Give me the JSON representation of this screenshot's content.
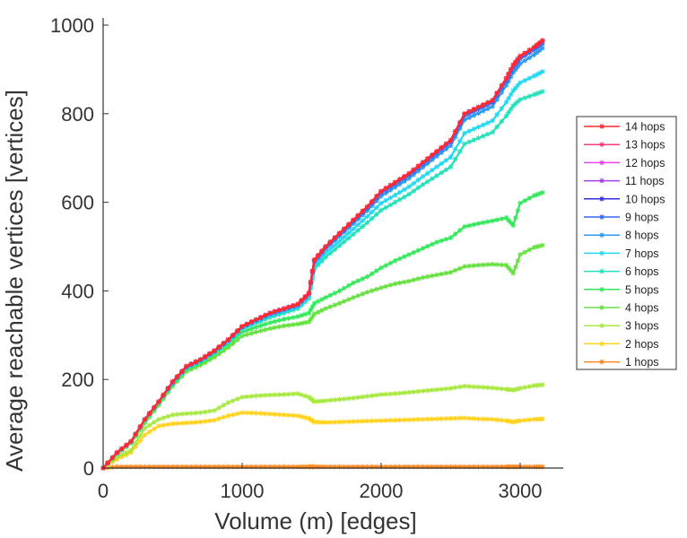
{
  "chart_data": {
    "type": "line",
    "title": "",
    "xlabel": "Volume (m) [edges]",
    "ylabel": "Average reachable vertices [vertices]",
    "xlim": [
      0,
      3300
    ],
    "ylim": [
      0,
      1000
    ],
    "xticks": [
      0,
      1000,
      2000,
      3000
    ],
    "yticks": [
      0,
      200,
      400,
      600,
      800,
      1000
    ],
    "grid": false,
    "legend_position": "right",
    "x": [
      0,
      100,
      200,
      300,
      400,
      500,
      600,
      700,
      800,
      900,
      1000,
      1100,
      1200,
      1300,
      1400,
      1480,
      1520,
      1600,
      1700,
      1800,
      1900,
      2000,
      2100,
      2200,
      2300,
      2400,
      2500,
      2600,
      2700,
      2800,
      2900,
      2950,
      3000,
      3100,
      3160
    ],
    "series": [
      {
        "name": "14 hops",
        "color": "#ff2a2a",
        "values": [
          0,
          35,
          60,
          110,
          150,
          195,
          230,
          245,
          265,
          290,
          320,
          335,
          350,
          360,
          370,
          395,
          470,
          500,
          530,
          560,
          590,
          625,
          645,
          665,
          690,
          715,
          740,
          800,
          815,
          830,
          880,
          910,
          930,
          950,
          965
        ]
      },
      {
        "name": "13 hops",
        "color": "#ff3c7a",
        "values": [
          0,
          35,
          60,
          110,
          150,
          195,
          230,
          245,
          265,
          290,
          320,
          335,
          350,
          360,
          370,
          395,
          470,
          500,
          530,
          560,
          590,
          625,
          645,
          665,
          690,
          715,
          740,
          800,
          815,
          830,
          880,
          910,
          930,
          950,
          965
        ]
      },
      {
        "name": "12 hops",
        "color": "#ee44ee",
        "values": [
          0,
          35,
          60,
          110,
          150,
          195,
          230,
          245,
          265,
          290,
          320,
          335,
          350,
          360,
          370,
          395,
          470,
          500,
          530,
          560,
          590,
          625,
          645,
          665,
          690,
          715,
          740,
          800,
          815,
          830,
          880,
          910,
          930,
          950,
          965
        ]
      },
      {
        "name": "11 hops",
        "color": "#a040f0",
        "values": [
          0,
          35,
          60,
          110,
          150,
          195,
          230,
          245,
          265,
          290,
          320,
          335,
          350,
          360,
          370,
          395,
          470,
          500,
          530,
          560,
          590,
          625,
          645,
          665,
          690,
          715,
          740,
          800,
          815,
          830,
          880,
          910,
          930,
          950,
          965
        ]
      },
      {
        "name": "10 hops",
        "color": "#3030e0",
        "values": [
          0,
          35,
          60,
          110,
          150,
          195,
          230,
          245,
          265,
          290,
          320,
          335,
          350,
          360,
          370,
          395,
          470,
          500,
          530,
          560,
          590,
          625,
          645,
          665,
          690,
          715,
          740,
          800,
          815,
          830,
          880,
          910,
          930,
          950,
          965
        ]
      },
      {
        "name": "9 hops",
        "color": "#3366ff",
        "values": [
          0,
          35,
          60,
          110,
          150,
          194,
          229,
          244,
          264,
          289,
          319,
          334,
          349,
          359,
          369,
          394,
          468,
          498,
          528,
          557,
          587,
          621,
          641,
          661,
          686,
          711,
          736,
          795,
          810,
          825,
          874,
          904,
          924,
          944,
          958
        ]
      },
      {
        "name": "8 hops",
        "color": "#2a9af0",
        "values": [
          0,
          35,
          60,
          110,
          150,
          193,
          228,
          243,
          263,
          288,
          318,
          333,
          347,
          357,
          367,
          392,
          465,
          494,
          523,
          552,
          581,
          614,
          634,
          654,
          679,
          704,
          728,
          786,
          801,
          816,
          864,
          893,
          913,
          933,
          948
        ]
      },
      {
        "name": "7 hops",
        "color": "#22d8f0",
        "values": [
          0,
          34,
          59,
          109,
          149,
          192,
          227,
          242,
          262,
          286,
          316,
          330,
          344,
          354,
          364,
          388,
          458,
          485,
          512,
          540,
          568,
          598,
          616,
          635,
          658,
          680,
          702,
          756,
          770,
          784,
          826,
          852,
          870,
          885,
          895
        ]
      },
      {
        "name": "6 hops",
        "color": "#22e0b8",
        "values": [
          0,
          34,
          59,
          108,
          148,
          191,
          226,
          241,
          261,
          285,
          314,
          327,
          340,
          350,
          360,
          383,
          450,
          476,
          502,
          528,
          554,
          582,
          600,
          618,
          640,
          660,
          680,
          732,
          745,
          758,
          795,
          818,
          832,
          843,
          850
        ]
      },
      {
        "name": "5 hops",
        "color": "#33e85a",
        "values": [
          0,
          33,
          58,
          106,
          146,
          189,
          224,
          238,
          257,
          280,
          307,
          318,
          328,
          336,
          342,
          350,
          372,
          385,
          400,
          418,
          432,
          452,
          468,
          482,
          496,
          510,
          520,
          545,
          552,
          558,
          565,
          548,
          598,
          615,
          622
        ]
      },
      {
        "name": "4 hops",
        "color": "#66e040",
        "values": [
          0,
          32,
          56,
          102,
          142,
          185,
          218,
          232,
          250,
          272,
          298,
          307,
          315,
          321,
          325,
          330,
          348,
          360,
          372,
          385,
          397,
          407,
          416,
          422,
          430,
          436,
          442,
          455,
          458,
          460,
          458,
          440,
          482,
          498,
          503
        ]
      },
      {
        "name": "3 hops",
        "color": "#a8e840",
        "values": [
          0,
          25,
          40,
          90,
          110,
          120,
          123,
          125,
          130,
          148,
          160,
          163,
          165,
          166,
          168,
          160,
          150,
          152,
          155,
          158,
          162,
          166,
          168,
          171,
          174,
          177,
          180,
          185,
          183,
          181,
          178,
          176,
          180,
          186,
          188
        ]
      },
      {
        "name": "2 hops",
        "color": "#ffd21e",
        "values": [
          0,
          20,
          35,
          75,
          95,
          100,
          102,
          104,
          108,
          118,
          125,
          124,
          122,
          120,
          118,
          112,
          104,
          103,
          104,
          105,
          106,
          107,
          108,
          109,
          110,
          111,
          112,
          113,
          111,
          110,
          107,
          104,
          107,
          110,
          111
        ]
      },
      {
        "name": "1 hops",
        "color": "#ff8820",
        "values": [
          0,
          3,
          3,
          3,
          3,
          3,
          3,
          3,
          3,
          3,
          3,
          3,
          3,
          3,
          3,
          3,
          3,
          3,
          3,
          3,
          3,
          3,
          3,
          3,
          3,
          3,
          3,
          3,
          3,
          3,
          3,
          3,
          3,
          3,
          3
        ]
      }
    ]
  }
}
